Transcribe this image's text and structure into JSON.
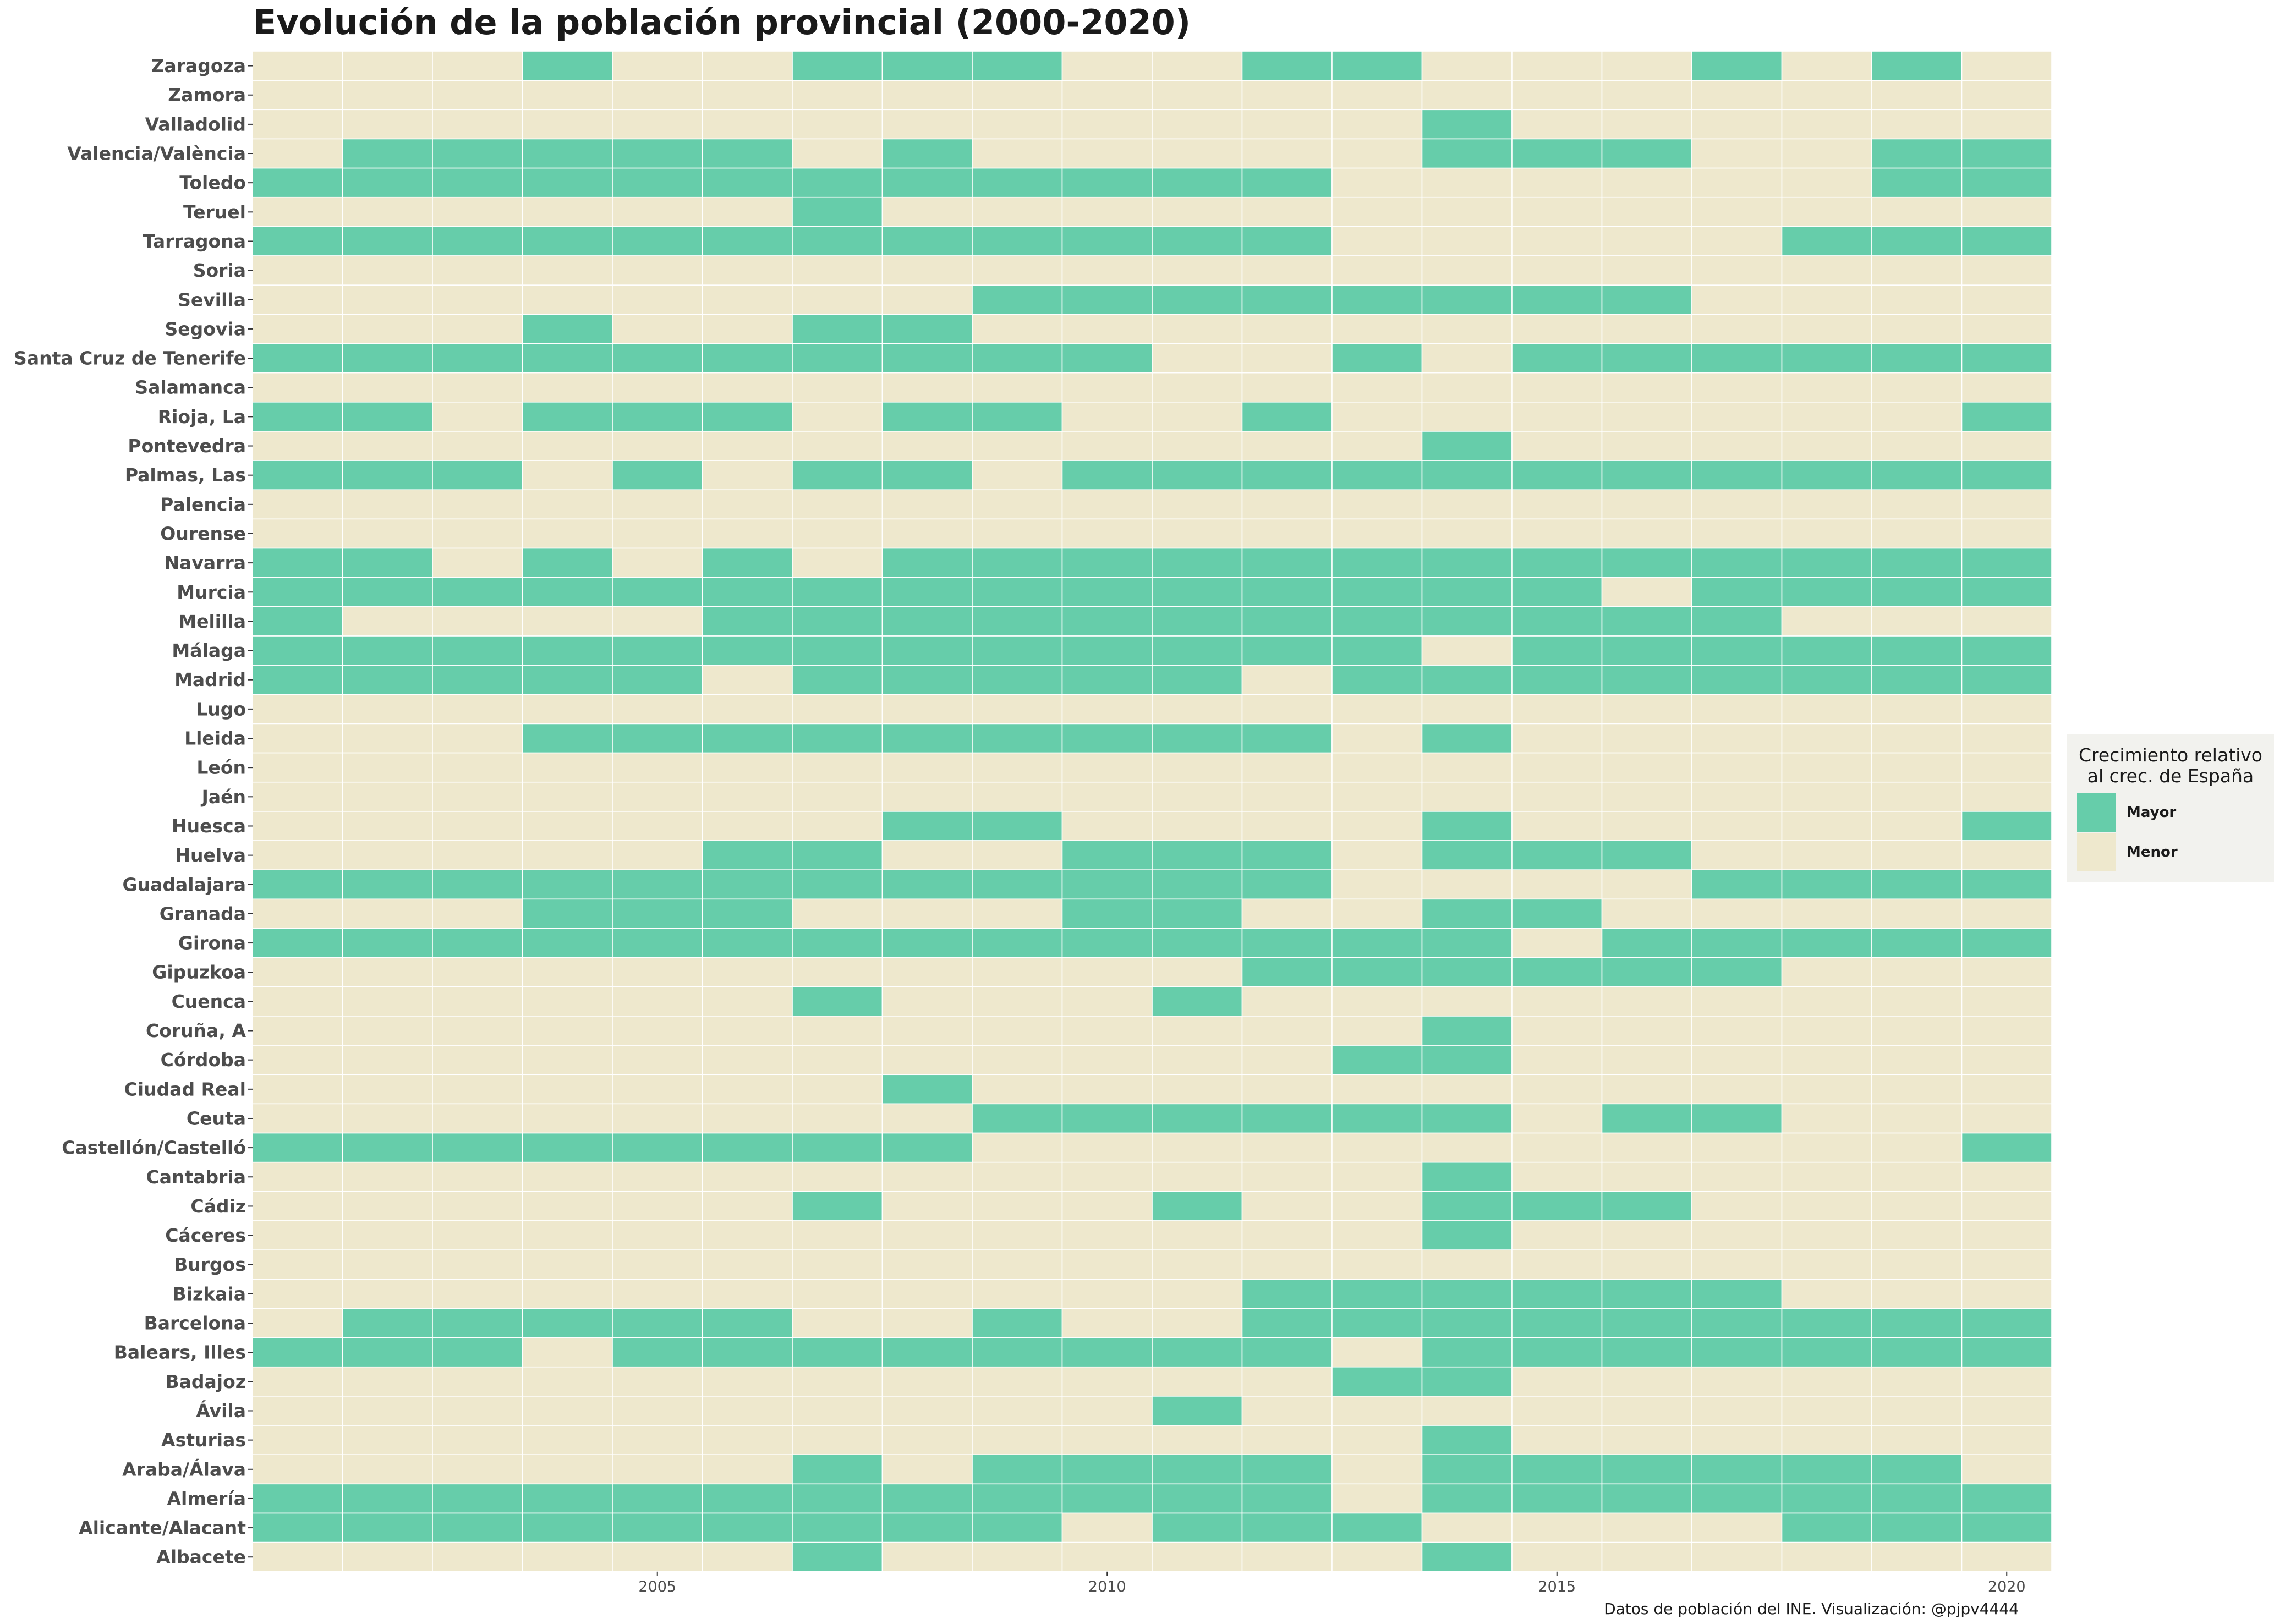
{
  "chart_data": {
    "type": "heatmap",
    "title": "Evolución de la población provincial (2000-2020)",
    "xlabel": "",
    "ylabel": "",
    "x_range": [
      2001,
      2020
    ],
    "x_ticks": [
      2005,
      2010,
      2015,
      2020
    ],
    "years": [
      2001,
      2002,
      2003,
      2004,
      2005,
      2006,
      2007,
      2008,
      2009,
      2010,
      2011,
      2012,
      2013,
      2014,
      2015,
      2016,
      2017,
      2018,
      2019,
      2020
    ],
    "value_codes": {
      "1": "Mayor",
      "0": "Menor"
    },
    "rows": [
      {
        "province": "Zaragoza",
        "values": [
          0,
          0,
          0,
          1,
          0,
          0,
          1,
          1,
          1,
          0,
          0,
          1,
          1,
          0,
          0,
          0,
          1,
          0,
          1,
          0
        ]
      },
      {
        "province": "Zamora",
        "values": [
          0,
          0,
          0,
          0,
          0,
          0,
          0,
          0,
          0,
          0,
          0,
          0,
          0,
          0,
          0,
          0,
          0,
          0,
          0,
          0
        ]
      },
      {
        "province": "Valladolid",
        "values": [
          0,
          0,
          0,
          0,
          0,
          0,
          0,
          0,
          0,
          0,
          0,
          0,
          0,
          1,
          0,
          0,
          0,
          0,
          0,
          0
        ]
      },
      {
        "province": "Valencia/València",
        "values": [
          0,
          1,
          1,
          1,
          1,
          1,
          0,
          1,
          0,
          0,
          0,
          0,
          0,
          1,
          1,
          1,
          0,
          0,
          1,
          1
        ]
      },
      {
        "province": "Toledo",
        "values": [
          1,
          1,
          1,
          1,
          1,
          1,
          1,
          1,
          1,
          1,
          1,
          1,
          0,
          0,
          0,
          0,
          0,
          0,
          1,
          1
        ]
      },
      {
        "province": "Teruel",
        "values": [
          0,
          0,
          0,
          0,
          0,
          0,
          1,
          0,
          0,
          0,
          0,
          0,
          0,
          0,
          0,
          0,
          0,
          0,
          0,
          0
        ]
      },
      {
        "province": "Tarragona",
        "values": [
          1,
          1,
          1,
          1,
          1,
          1,
          1,
          1,
          1,
          1,
          1,
          1,
          0,
          0,
          0,
          0,
          0,
          1,
          1,
          1
        ]
      },
      {
        "province": "Soria",
        "values": [
          0,
          0,
          0,
          0,
          0,
          0,
          0,
          0,
          0,
          0,
          0,
          0,
          0,
          0,
          0,
          0,
          0,
          0,
          0,
          0
        ]
      },
      {
        "province": "Sevilla",
        "values": [
          0,
          0,
          0,
          0,
          0,
          0,
          0,
          0,
          1,
          1,
          1,
          1,
          1,
          1,
          1,
          1,
          0,
          0,
          0,
          0
        ]
      },
      {
        "province": "Segovia",
        "values": [
          0,
          0,
          0,
          1,
          0,
          0,
          1,
          1,
          0,
          0,
          0,
          0,
          0,
          0,
          0,
          0,
          0,
          0,
          0,
          0
        ]
      },
      {
        "province": "Santa Cruz de Tenerife",
        "values": [
          1,
          1,
          1,
          1,
          1,
          1,
          1,
          1,
          1,
          1,
          0,
          0,
          1,
          0,
          1,
          1,
          1,
          1,
          1,
          1
        ]
      },
      {
        "province": "Salamanca",
        "values": [
          0,
          0,
          0,
          0,
          0,
          0,
          0,
          0,
          0,
          0,
          0,
          0,
          0,
          0,
          0,
          0,
          0,
          0,
          0,
          0
        ]
      },
      {
        "province": "Rioja, La",
        "values": [
          1,
          1,
          0,
          1,
          1,
          1,
          0,
          1,
          1,
          0,
          0,
          1,
          0,
          0,
          0,
          0,
          0,
          0,
          0,
          1
        ]
      },
      {
        "province": "Pontevedra",
        "values": [
          0,
          0,
          0,
          0,
          0,
          0,
          0,
          0,
          0,
          0,
          0,
          0,
          0,
          1,
          0,
          0,
          0,
          0,
          0,
          0
        ]
      },
      {
        "province": "Palmas, Las",
        "values": [
          1,
          1,
          1,
          0,
          1,
          0,
          1,
          1,
          0,
          1,
          1,
          1,
          1,
          1,
          1,
          1,
          1,
          1,
          1,
          1
        ]
      },
      {
        "province": "Palencia",
        "values": [
          0,
          0,
          0,
          0,
          0,
          0,
          0,
          0,
          0,
          0,
          0,
          0,
          0,
          0,
          0,
          0,
          0,
          0,
          0,
          0
        ]
      },
      {
        "province": "Ourense",
        "values": [
          0,
          0,
          0,
          0,
          0,
          0,
          0,
          0,
          0,
          0,
          0,
          0,
          0,
          0,
          0,
          0,
          0,
          0,
          0,
          0
        ]
      },
      {
        "province": "Navarra",
        "values": [
          1,
          1,
          0,
          1,
          0,
          1,
          0,
          1,
          1,
          1,
          1,
          1,
          1,
          1,
          1,
          1,
          1,
          1,
          1,
          1
        ]
      },
      {
        "province": "Murcia",
        "values": [
          1,
          1,
          1,
          1,
          1,
          1,
          1,
          1,
          1,
          1,
          1,
          1,
          1,
          1,
          1,
          0,
          1,
          1,
          1,
          1
        ]
      },
      {
        "province": "Melilla",
        "values": [
          1,
          0,
          0,
          0,
          0,
          1,
          1,
          1,
          1,
          1,
          1,
          1,
          1,
          1,
          1,
          1,
          1,
          0,
          0,
          0
        ]
      },
      {
        "province": "Málaga",
        "values": [
          1,
          1,
          1,
          1,
          1,
          1,
          1,
          1,
          1,
          1,
          1,
          1,
          1,
          0,
          1,
          1,
          1,
          1,
          1,
          1
        ]
      },
      {
        "province": "Madrid",
        "values": [
          1,
          1,
          1,
          1,
          1,
          0,
          1,
          1,
          1,
          1,
          1,
          0,
          1,
          1,
          1,
          1,
          1,
          1,
          1,
          1
        ]
      },
      {
        "province": "Lugo",
        "values": [
          0,
          0,
          0,
          0,
          0,
          0,
          0,
          0,
          0,
          0,
          0,
          0,
          0,
          0,
          0,
          0,
          0,
          0,
          0,
          0
        ]
      },
      {
        "province": "Lleida",
        "values": [
          0,
          0,
          0,
          1,
          1,
          1,
          1,
          1,
          1,
          1,
          1,
          1,
          0,
          1,
          0,
          0,
          0,
          0,
          0,
          0
        ]
      },
      {
        "province": "León",
        "values": [
          0,
          0,
          0,
          0,
          0,
          0,
          0,
          0,
          0,
          0,
          0,
          0,
          0,
          0,
          0,
          0,
          0,
          0,
          0,
          0
        ]
      },
      {
        "province": "Jaén",
        "values": [
          0,
          0,
          0,
          0,
          0,
          0,
          0,
          0,
          0,
          0,
          0,
          0,
          0,
          0,
          0,
          0,
          0,
          0,
          0,
          0
        ]
      },
      {
        "province": "Huesca",
        "values": [
          0,
          0,
          0,
          0,
          0,
          0,
          0,
          1,
          1,
          0,
          0,
          0,
          0,
          1,
          0,
          0,
          0,
          0,
          0,
          1
        ]
      },
      {
        "province": "Huelva",
        "values": [
          0,
          0,
          0,
          0,
          0,
          1,
          1,
          0,
          0,
          1,
          1,
          1,
          0,
          1,
          1,
          1,
          0,
          0,
          0,
          0
        ]
      },
      {
        "province": "Guadalajara",
        "values": [
          1,
          1,
          1,
          1,
          1,
          1,
          1,
          1,
          1,
          1,
          1,
          1,
          0,
          0,
          0,
          0,
          1,
          1,
          1,
          1
        ]
      },
      {
        "province": "Granada",
        "values": [
          0,
          0,
          0,
          1,
          1,
          1,
          0,
          0,
          0,
          1,
          1,
          0,
          0,
          1,
          1,
          0,
          0,
          0,
          0,
          0
        ]
      },
      {
        "province": "Girona",
        "values": [
          1,
          1,
          1,
          1,
          1,
          1,
          1,
          1,
          1,
          1,
          1,
          1,
          1,
          1,
          0,
          1,
          1,
          1,
          1,
          1
        ]
      },
      {
        "province": "Gipuzkoa",
        "values": [
          0,
          0,
          0,
          0,
          0,
          0,
          0,
          0,
          0,
          0,
          0,
          1,
          1,
          1,
          1,
          1,
          1,
          0,
          0,
          0
        ]
      },
      {
        "province": "Cuenca",
        "values": [
          0,
          0,
          0,
          0,
          0,
          0,
          1,
          0,
          0,
          0,
          1,
          0,
          0,
          0,
          0,
          0,
          0,
          0,
          0,
          0
        ]
      },
      {
        "province": "Coruña, A",
        "values": [
          0,
          0,
          0,
          0,
          0,
          0,
          0,
          0,
          0,
          0,
          0,
          0,
          0,
          1,
          0,
          0,
          0,
          0,
          0,
          0
        ]
      },
      {
        "province": "Córdoba",
        "values": [
          0,
          0,
          0,
          0,
          0,
          0,
          0,
          0,
          0,
          0,
          0,
          0,
          1,
          1,
          0,
          0,
          0,
          0,
          0,
          0
        ]
      },
      {
        "province": "Ciudad Real",
        "values": [
          0,
          0,
          0,
          0,
          0,
          0,
          0,
          1,
          0,
          0,
          0,
          0,
          0,
          0,
          0,
          0,
          0,
          0,
          0,
          0
        ]
      },
      {
        "province": "Ceuta",
        "values": [
          0,
          0,
          0,
          0,
          0,
          0,
          0,
          0,
          1,
          1,
          1,
          1,
          1,
          1,
          0,
          1,
          1,
          0,
          0,
          0
        ]
      },
      {
        "province": "Castellón/Castelló",
        "values": [
          1,
          1,
          1,
          1,
          1,
          1,
          1,
          1,
          0,
          0,
          0,
          0,
          0,
          0,
          0,
          0,
          0,
          0,
          0,
          1
        ]
      },
      {
        "province": "Cantabria",
        "values": [
          0,
          0,
          0,
          0,
          0,
          0,
          0,
          0,
          0,
          0,
          0,
          0,
          0,
          1,
          0,
          0,
          0,
          0,
          0,
          0
        ]
      },
      {
        "province": "Cádiz",
        "values": [
          0,
          0,
          0,
          0,
          0,
          0,
          1,
          0,
          0,
          0,
          1,
          0,
          0,
          1,
          1,
          1,
          0,
          0,
          0,
          0
        ]
      },
      {
        "province": "Cáceres",
        "values": [
          0,
          0,
          0,
          0,
          0,
          0,
          0,
          0,
          0,
          0,
          0,
          0,
          0,
          1,
          0,
          0,
          0,
          0,
          0,
          0
        ]
      },
      {
        "province": "Burgos",
        "values": [
          0,
          0,
          0,
          0,
          0,
          0,
          0,
          0,
          0,
          0,
          0,
          0,
          0,
          0,
          0,
          0,
          0,
          0,
          0,
          0
        ]
      },
      {
        "province": "Bizkaia",
        "values": [
          0,
          0,
          0,
          0,
          0,
          0,
          0,
          0,
          0,
          0,
          0,
          1,
          1,
          1,
          1,
          1,
          1,
          0,
          0,
          0
        ]
      },
      {
        "province": "Barcelona",
        "values": [
          0,
          1,
          1,
          1,
          1,
          1,
          0,
          0,
          1,
          0,
          0,
          1,
          1,
          1,
          1,
          1,
          1,
          1,
          1,
          1
        ]
      },
      {
        "province": "Balears, Illes",
        "values": [
          1,
          1,
          1,
          0,
          1,
          1,
          1,
          1,
          1,
          1,
          1,
          1,
          0,
          1,
          1,
          1,
          1,
          1,
          1,
          1
        ]
      },
      {
        "province": "Badajoz",
        "values": [
          0,
          0,
          0,
          0,
          0,
          0,
          0,
          0,
          0,
          0,
          0,
          0,
          1,
          1,
          0,
          0,
          0,
          0,
          0,
          0
        ]
      },
      {
        "province": "Ávila",
        "values": [
          0,
          0,
          0,
          0,
          0,
          0,
          0,
          0,
          0,
          0,
          1,
          0,
          0,
          0,
          0,
          0,
          0,
          0,
          0,
          0
        ]
      },
      {
        "province": "Asturias",
        "values": [
          0,
          0,
          0,
          0,
          0,
          0,
          0,
          0,
          0,
          0,
          0,
          0,
          0,
          1,
          0,
          0,
          0,
          0,
          0,
          0
        ]
      },
      {
        "province": "Araba/Álava",
        "values": [
          0,
          0,
          0,
          0,
          0,
          0,
          1,
          0,
          1,
          1,
          1,
          1,
          0,
          1,
          1,
          1,
          1,
          1,
          1,
          0
        ]
      },
      {
        "province": "Almería",
        "values": [
          1,
          1,
          1,
          1,
          1,
          1,
          1,
          1,
          1,
          1,
          1,
          1,
          0,
          1,
          1,
          1,
          1,
          1,
          1,
          1
        ]
      },
      {
        "province": "Alicante/Alacant",
        "values": [
          1,
          1,
          1,
          1,
          1,
          1,
          1,
          1,
          1,
          0,
          1,
          1,
          1,
          0,
          0,
          0,
          0,
          1,
          1,
          1
        ]
      },
      {
        "province": "Albacete",
        "values": [
          0,
          0,
          0,
          0,
          0,
          0,
          1,
          0,
          0,
          0,
          0,
          0,
          0,
          1,
          0,
          0,
          0,
          0,
          0,
          0
        ]
      }
    ],
    "legend": {
      "title": "Crecimiento relativo\n al crec. de España",
      "position": "right",
      "items": [
        {
          "label": "Mayor",
          "color": "#66cdaa"
        },
        {
          "label": "Menor",
          "color": "#eee8cd"
        }
      ]
    },
    "grid": true,
    "caption": "Datos de población del INE. Visualización: @pjpv4444"
  },
  "colors": {
    "mayor": "#66cdaa",
    "menor": "#eee8cd",
    "grid_line": "#ffffff",
    "text": "#1a1a1a",
    "axis_text": "#4d4d4d"
  }
}
